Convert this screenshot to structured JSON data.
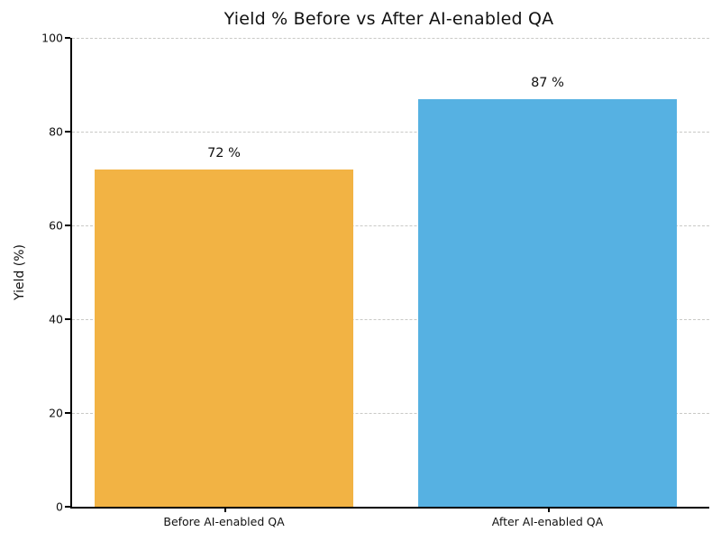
{
  "chart_data": {
    "type": "bar",
    "title": "Yield % Before vs After AI-enabled QA",
    "xlabel": "",
    "ylabel": "Yield (%)",
    "categories": [
      "Before AI-enabled QA",
      "After AI-enabled QA"
    ],
    "values": [
      72,
      87
    ],
    "bar_value_labels": [
      "72 %",
      "87 %"
    ],
    "bar_colors": [
      "#F2B344",
      "#56B1E2"
    ],
    "ylim": [
      0,
      100
    ],
    "yticks": [
      0,
      20,
      40,
      60,
      80,
      100
    ],
    "grid": "horizontal-dashed",
    "gridline_color": "#c9c9c6",
    "legend_position": "none",
    "background_color": "#ffffff"
  }
}
